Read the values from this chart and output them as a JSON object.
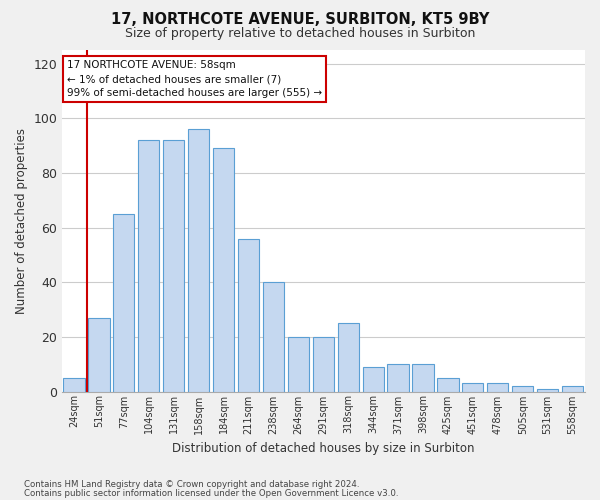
{
  "title1": "17, NORTHCOTE AVENUE, SURBITON, KT5 9BY",
  "title2": "Size of property relative to detached houses in Surbiton",
  "xlabel": "Distribution of detached houses by size in Surbiton",
  "ylabel": "Number of detached properties",
  "footnote1": "Contains HM Land Registry data © Crown copyright and database right 2024.",
  "footnote2": "Contains public sector information licensed under the Open Government Licence v3.0.",
  "categories": [
    "24sqm",
    "51sqm",
    "77sqm",
    "104sqm",
    "131sqm",
    "158sqm",
    "184sqm",
    "211sqm",
    "238sqm",
    "264sqm",
    "291sqm",
    "318sqm",
    "344sqm",
    "371sqm",
    "398sqm",
    "425sqm",
    "451sqm",
    "478sqm",
    "505sqm",
    "531sqm",
    "558sqm"
  ],
  "values": [
    5,
    27,
    65,
    92,
    92,
    96,
    89,
    56,
    40,
    20,
    20,
    25,
    9,
    10,
    10,
    5,
    3,
    3,
    2,
    1,
    2
  ],
  "bar_color": "#c5d8f0",
  "bar_edge_color": "#5a9fd4",
  "property_line_color": "#cc0000",
  "annotation_line1": "17 NORTHCOTE AVENUE: 58sqm",
  "annotation_line2": "← 1% of detached houses are smaller (7)",
  "annotation_line3": "99% of semi-detached houses are larger (555) →",
  "annotation_box_color": "#ffffff",
  "annotation_box_edge": "#cc0000",
  "ylim": [
    0,
    125
  ],
  "yticks": [
    0,
    20,
    40,
    60,
    80,
    100,
    120
  ],
  "grid_color": "#cccccc",
  "background_color": "#f0f0f0",
  "plot_bg_color": "#ffffff"
}
